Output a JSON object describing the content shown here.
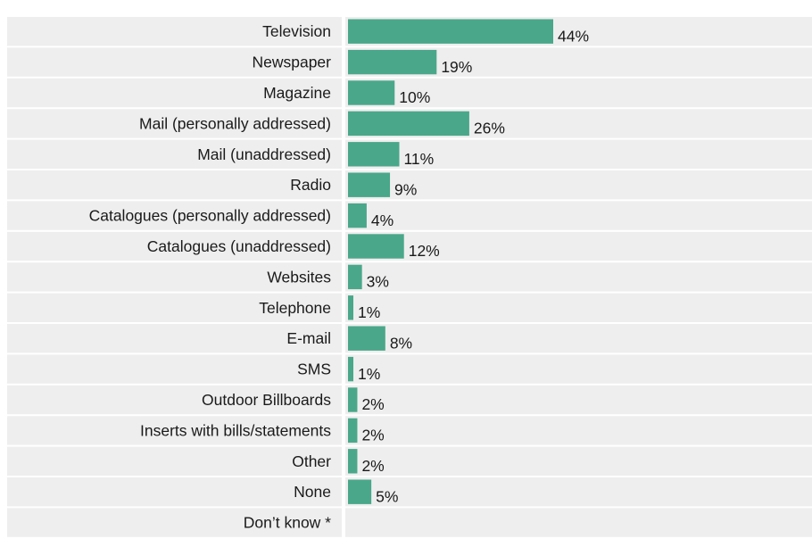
{
  "chart_data": {
    "type": "bar",
    "orientation": "horizontal",
    "title": "",
    "xlabel": "",
    "ylabel": "",
    "bar_color": "#4aa78a",
    "row_background": "#eeeeee",
    "grid": false,
    "legend": "none",
    "xlim": [
      0,
      44
    ],
    "categories": [
      "Television",
      "Newspaper",
      "Magazine",
      "Mail (personally addressed)",
      "Mail (unaddressed)",
      "Radio",
      "Catalogues (personally addressed)",
      "Catalogues (unaddressed)",
      "Websites",
      "Telephone",
      "E-mail",
      "SMS",
      "Outdoor Billboards",
      "Inserts with bills/statements",
      "Other",
      "None",
      "Don’t know *"
    ],
    "values": [
      44,
      19,
      10,
      26,
      11,
      9,
      4,
      12,
      3,
      1,
      8,
      1,
      2,
      2,
      2,
      5,
      null
    ],
    "value_labels": [
      "44%",
      "19%",
      "10%",
      "26%",
      "11%",
      "9%",
      "4%",
      "12%",
      "3%",
      "1%",
      "8%",
      "1%",
      "2%",
      "2%",
      "2%",
      "5%",
      ""
    ]
  }
}
